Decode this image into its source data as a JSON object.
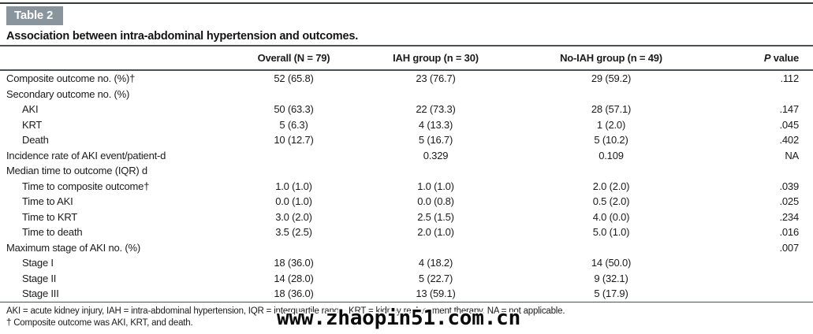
{
  "watermark": "www.zhaopin51.com.cn",
  "colors": {
    "label_box_bg": "#8a949c",
    "rule": "#4b5054",
    "text": "#1b1b1b"
  },
  "table": {
    "label": "Table 2",
    "caption": "Association between intra-abdominal hypertension and outcomes.",
    "header": {
      "overall": "Overall (N = 79)",
      "iah": "IAH group (n = 30)",
      "no_iah": "No-IAH group (n = 49)",
      "p_italic": "P",
      "p_rest": " value"
    },
    "rows": [
      {
        "label": "Composite outcome no. (%)†",
        "indent": false,
        "overall": "52 (65.8)",
        "iah": "23 (76.7)",
        "no_iah": "29 (59.2)",
        "p": ".112"
      },
      {
        "label": "Secondary outcome no. (%)",
        "indent": false,
        "overall": "",
        "iah": "",
        "no_iah": "",
        "p": ""
      },
      {
        "label": "AKI",
        "indent": true,
        "overall": "50 (63.3)",
        "iah": "22 (73.3)",
        "no_iah": "28 (57.1)",
        "p": ".147"
      },
      {
        "label": "KRT",
        "indent": true,
        "overall": "5 (6.3)",
        "iah": "4 (13.3)",
        "no_iah": "1 (2.0)",
        "p": ".045"
      },
      {
        "label": "Death",
        "indent": true,
        "overall": "10 (12.7)",
        "iah": "5 (16.7)",
        "no_iah": "5 (10.2)",
        "p": ".402"
      },
      {
        "label": "Incidence rate of AKI event/patient-d",
        "indent": false,
        "overall": "",
        "iah": "0.329",
        "no_iah": "0.109",
        "p": "NA"
      },
      {
        "label": "Median time to outcome (IQR) d",
        "indent": false,
        "overall": "",
        "iah": "",
        "no_iah": "",
        "p": ""
      },
      {
        "label": "Time to composite outcome†",
        "indent": true,
        "overall": "1.0 (1.0)",
        "iah": "1.0 (1.0)",
        "no_iah": "2.0 (2.0)",
        "p": ".039"
      },
      {
        "label": "Time to AKI",
        "indent": true,
        "overall": "0.0 (1.0)",
        "iah": "0.0 (0.8)",
        "no_iah": "0.5 (2.0)",
        "p": ".025"
      },
      {
        "label": "Time to KRT",
        "indent": true,
        "overall": "3.0 (2.0)",
        "iah": "2.5 (1.5)",
        "no_iah": "4.0 (0.0)",
        "p": ".234"
      },
      {
        "label": "Time to death",
        "indent": true,
        "overall": "3.5 (2.5)",
        "iah": "2.0 (1.0)",
        "no_iah": "5.0 (1.0)",
        "p": ".016"
      },
      {
        "label": "Maximum stage of AKI no. (%)",
        "indent": false,
        "overall": "",
        "iah": "",
        "no_iah": "",
        "p": ".007"
      },
      {
        "label": "Stage I",
        "indent": true,
        "overall": "18 (36.0)",
        "iah": "4 (18.2)",
        "no_iah": "14 (50.0)",
        "p": ""
      },
      {
        "label": "Stage II",
        "indent": true,
        "overall": "14 (28.0)",
        "iah": "5 (22.7)",
        "no_iah": "9 (32.1)",
        "p": ""
      },
      {
        "label": "Stage III",
        "indent": true,
        "overall": "18 (36.0)",
        "iah": "13 (59.1)",
        "no_iah": "5 (17.9)",
        "p": ""
      }
    ],
    "footnotes": [
      "AKI = acute kidney injury, IAH = intra-abdominal hypertension, IQR = interquartile range, KRT = kidney replacement therapy, NA = not applicable.",
      "† Composite outcome was AKI, KRT, and death."
    ]
  }
}
